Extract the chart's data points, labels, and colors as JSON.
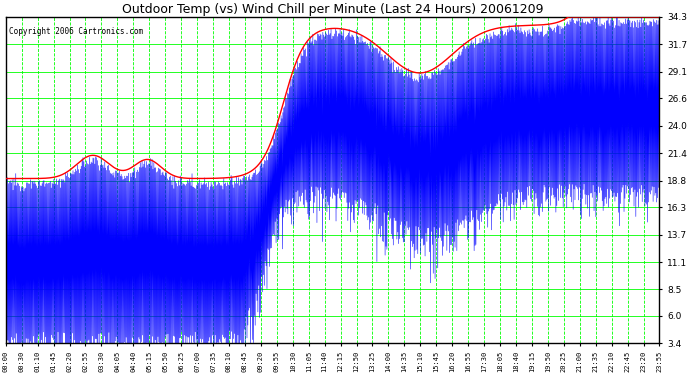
{
  "title": "Outdoor Temp (vs) Wind Chill per Minute (Last 24 Hours) 20061209",
  "copyright_text": "Copyright 2006 Cartronics.com",
  "background_color": "#ffffff",
  "plot_bg_color": "#ffffff",
  "grid_color": "#00ff00",
  "line1_color": "#0000ff",
  "line2_color": "#ff0000",
  "y_ticks": [
    3.4,
    6.0,
    8.5,
    11.1,
    13.7,
    16.3,
    18.8,
    21.4,
    24.0,
    26.6,
    29.1,
    31.7,
    34.3
  ],
  "ylim": [
    3.4,
    34.3
  ],
  "x_labels": [
    "00:00",
    "00:30",
    "01:10",
    "01:45",
    "02:20",
    "02:55",
    "03:30",
    "04:05",
    "04:40",
    "05:15",
    "05:50",
    "06:25",
    "07:00",
    "07:35",
    "08:10",
    "08:45",
    "09:20",
    "09:55",
    "10:30",
    "11:05",
    "11:40",
    "12:15",
    "12:50",
    "13:25",
    "14:00",
    "14:35",
    "15:10",
    "15:45",
    "16:20",
    "16:55",
    "17:30",
    "18:05",
    "18:40",
    "19:15",
    "19:50",
    "20:25",
    "21:00",
    "21:35",
    "22:10",
    "22:45",
    "23:20",
    "23:55"
  ],
  "n_points": 1440,
  "figwidth": 6.9,
  "figheight": 3.75,
  "dpi": 100
}
